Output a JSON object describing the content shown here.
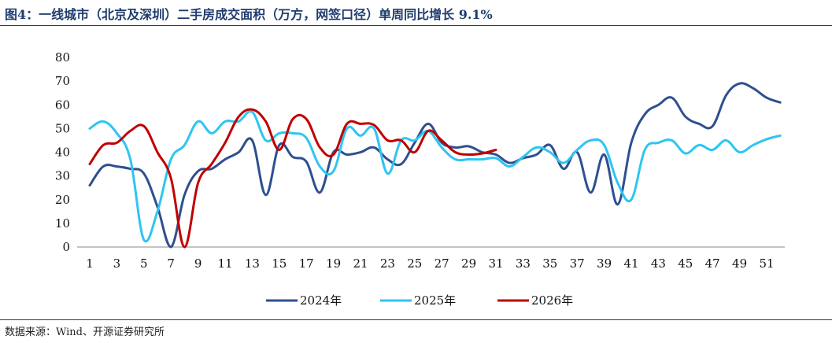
{
  "header": {
    "title": "图4：一线城市（北京及深圳）二手房成交面积（万方，网签口径）单周同比增长 9.1%"
  },
  "footer": {
    "source": "数据来源：Wind、开源证券研究所"
  },
  "colors": {
    "rule": "#1f3c6e",
    "s2024": "#2f4f8f",
    "s2025": "#2ec5f2",
    "s2026": "#c00000"
  },
  "chart_data": {
    "type": "line",
    "title": "图4：一线城市（北京及深圳）二手房成交面积（万方，网签口径）单周同比增长 9.1%",
    "xlabel": "",
    "ylabel": "",
    "ylim": [
      0,
      80
    ],
    "yticks": [
      0,
      10,
      20,
      30,
      40,
      50,
      60,
      70,
      80
    ],
    "xlim": [
      1,
      52
    ],
    "xticks": [
      1,
      3,
      5,
      7,
      9,
      11,
      13,
      15,
      17,
      19,
      21,
      23,
      25,
      27,
      29,
      31,
      33,
      35,
      37,
      39,
      41,
      43,
      45,
      47,
      49,
      51
    ],
    "grid": false,
    "legend_position": "bottom",
    "series": [
      {
        "name": "2024年",
        "color": "#2f4f8f",
        "x": [
          1,
          2,
          3,
          4,
          5,
          6,
          7,
          8,
          9,
          10,
          11,
          12,
          13,
          14,
          15,
          16,
          17,
          18,
          19,
          20,
          21,
          22,
          23,
          24,
          25,
          26,
          27,
          28,
          29,
          30,
          31,
          32,
          33,
          34,
          35,
          36,
          37,
          38,
          39,
          40,
          41,
          42,
          43,
          44,
          45,
          46,
          47,
          48,
          49,
          50,
          51,
          52
        ],
        "values": [
          26,
          34,
          34,
          33,
          31,
          17,
          0,
          22,
          32,
          33,
          37,
          40,
          45,
          22,
          43,
          38,
          36,
          23,
          40,
          39,
          40,
          42,
          37,
          35,
          44,
          52,
          44,
          42,
          42.5,
          40,
          39,
          35.5,
          37.5,
          39,
          43,
          33,
          40,
          23,
          39,
          18,
          44,
          56,
          60,
          63,
          55,
          52,
          51,
          64,
          69,
          67,
          63,
          61
        ]
      },
      {
        "name": "2025年",
        "color": "#2ec5f2",
        "x": [
          1,
          2,
          3,
          4,
          5,
          6,
          7,
          8,
          9,
          10,
          11,
          12,
          13,
          14,
          15,
          16,
          17,
          18,
          19,
          20,
          21,
          22,
          23,
          24,
          25,
          26,
          27,
          28,
          29,
          30,
          31,
          32,
          33,
          34,
          35,
          36,
          37,
          38,
          39,
          40,
          41,
          42,
          43,
          44,
          45,
          46,
          47,
          48,
          49,
          50,
          51,
          52
        ],
        "values": [
          50,
          53,
          48,
          37,
          3,
          15,
          37,
          43,
          53,
          48,
          53,
          53,
          57,
          45,
          48,
          48,
          46,
          34,
          32,
          50,
          47,
          50,
          31,
          45,
          45,
          49,
          42,
          37,
          37,
          37,
          37.5,
          34,
          38,
          42,
          40,
          35.5,
          41,
          45,
          43,
          27,
          20,
          41,
          44,
          45,
          39.5,
          43,
          41,
          45,
          40,
          43,
          45.5,
          47
        ]
      },
      {
        "name": "2026年",
        "color": "#c00000",
        "x": [
          1,
          2,
          3,
          4,
          5,
          6,
          7,
          8,
          9,
          10,
          11,
          12,
          13,
          14,
          15,
          16,
          17,
          18,
          19,
          20,
          21,
          22,
          23,
          24,
          25,
          26,
          27,
          28,
          29,
          30,
          31
        ],
        "values": [
          35,
          43,
          44,
          49,
          51,
          40,
          29,
          0,
          27,
          35,
          44,
          55,
          58,
          53,
          41,
          54,
          54,
          42,
          39,
          52,
          52,
          51.5,
          45,
          45,
          40,
          49,
          45,
          40,
          39,
          39.5,
          41
        ]
      }
    ]
  }
}
